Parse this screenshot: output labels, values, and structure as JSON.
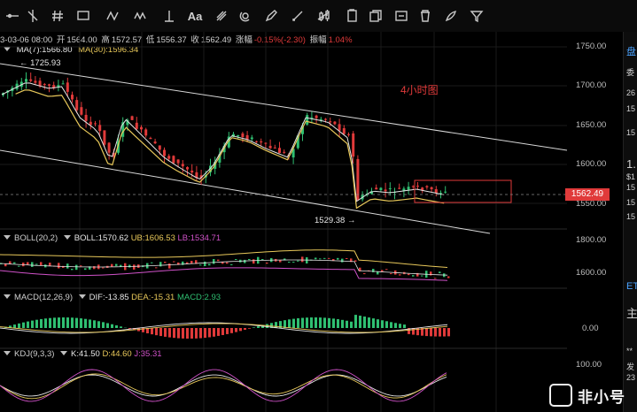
{
  "toolbar": {
    "icons": [
      "horizontal-line-icon",
      "vertical-line-icon",
      "fork-icon",
      "hash-icon",
      "rectangle-icon",
      "pattern-icon",
      "wave-icon",
      "ruler-icon",
      "text-tool-icon",
      "brush-icon",
      "magnet-icon",
      "pencil-icon",
      "measure-icon",
      "candle-icon",
      "copy-icon",
      "layers-icon",
      "visible-icon",
      "trash-icon",
      "settings-icon",
      "filter-icon"
    ],
    "text_tool": "Aa"
  },
  "ohlc": {
    "date": "3-03-06 08:00",
    "open_label": "开",
    "open": "1564.00",
    "high_label": "高",
    "high": "1572.57",
    "low_label": "低",
    "low": "1556.37",
    "close_label": "收",
    "close": "1562.49",
    "change_label": "涨幅",
    "change": "-0.15%(-2.30)",
    "amplitude_label": "振幅",
    "amplitude": "1.04%"
  },
  "ma": {
    "ma7": "MA(7):1566.80",
    "ma30": "MA(30):1596.34"
  },
  "annotations": {
    "timeframe": "4小时图",
    "high_marker": "1725.93",
    "low_marker": "1529.38"
  },
  "price_axis": [
    "1750.00",
    "1700.00",
    "1650.00",
    "1600.00",
    "1550.00",
    "1800.00",
    "1600.00",
    "0.00",
    "100.00"
  ],
  "current_price": "1562.49",
  "boll": {
    "name": "BOLL(20,2)",
    "mid": "BOLL:1570.62",
    "ub": "UB:1606.53",
    "lb": "LB:1534.71"
  },
  "macd": {
    "name": "MACD(12,26,9)",
    "dif": "DIF:-13.85",
    "dea": "DEA:-15.31",
    "macd": "MACD:2.93"
  },
  "kdj": {
    "name": "KDJ(9,3,3)",
    "k": "K:41.50",
    "d": "D:44.60",
    "j": "J:35.31"
  },
  "side": {
    "items": [
      "盘",
      "委",
      "26",
      "15",
      "15",
      "1.",
      "$1",
      "15",
      "15",
      "15",
      "ET",
      "主",
      "**",
      "发",
      "23"
    ]
  },
  "brand": {
    "name": "非小号"
  },
  "colors": {
    "up": "#2fbf71",
    "down": "#e03a3a",
    "ma7": "#e6e6e6",
    "ma30": "#e8c85a"
  }
}
